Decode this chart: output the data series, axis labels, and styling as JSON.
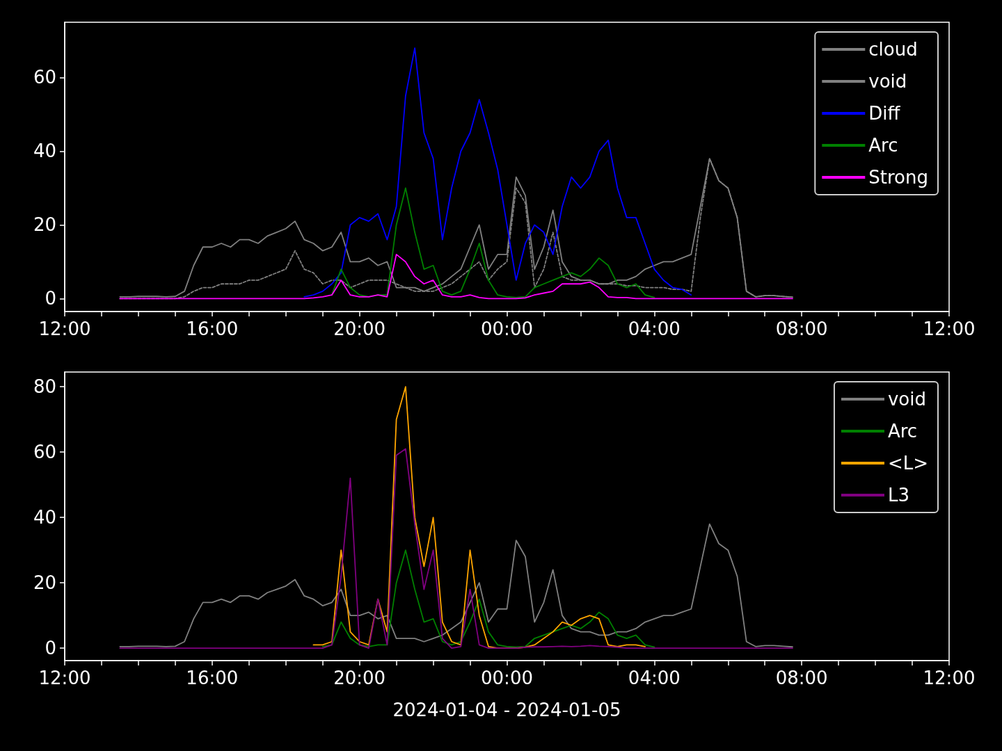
{
  "chart_data": [
    {
      "type": "line",
      "xlim": [
        "2024-01-04T12:00",
        "2024-01-05T12:00"
      ],
      "xticks": [
        {
          "value": "2024-01-04T12:00",
          "label": "12:00"
        },
        {
          "value": "2024-01-04T13:00",
          "label": null
        },
        {
          "value": "2024-01-04T14:00",
          "label": null
        },
        {
          "value": "2024-01-04T15:00",
          "label": null
        },
        {
          "value": "2024-01-04T16:00",
          "label": "16:00"
        },
        {
          "value": "2024-01-04T17:00",
          "label": null
        },
        {
          "value": "2024-01-04T18:00",
          "label": null
        },
        {
          "value": "2024-01-04T19:00",
          "label": null
        },
        {
          "value": "2024-01-04T20:00",
          "label": "20:00"
        },
        {
          "value": "2024-01-04T21:00",
          "label": null
        },
        {
          "value": "2024-01-04T22:00",
          "label": null
        },
        {
          "value": "2024-01-04T23:00",
          "label": null
        },
        {
          "value": "2024-01-05T00:00",
          "label": "00:00"
        },
        {
          "value": "2024-01-05T01:00",
          "label": null
        },
        {
          "value": "2024-01-05T02:00",
          "label": null
        },
        {
          "value": "2024-01-05T03:00",
          "label": null
        },
        {
          "value": "2024-01-05T04:00",
          "label": "04:00"
        },
        {
          "value": "2024-01-05T05:00",
          "label": null
        },
        {
          "value": "2024-01-05T06:00",
          "label": null
        },
        {
          "value": "2024-01-05T07:00",
          "label": null
        },
        {
          "value": "2024-01-05T08:00",
          "label": "08:00"
        },
        {
          "value": "2024-01-05T09:00",
          "label": null
        },
        {
          "value": "2024-01-05T10:00",
          "label": null
        },
        {
          "value": "2024-01-05T11:00",
          "label": null
        },
        {
          "value": "2024-01-05T12:00",
          "label": "12:00"
        }
      ],
      "ylim": [
        -3.5,
        75
      ],
      "yticks": [
        0,
        20,
        40,
        60
      ],
      "grid": false,
      "legend": "top right",
      "marker": "none",
      "x": [
        "2024-01-04T13:30",
        "2024-01-04T13:45",
        "2024-01-04T14:00",
        "2024-01-04T14:15",
        "2024-01-04T14:30",
        "2024-01-04T14:45",
        "2024-01-04T15:00",
        "2024-01-04T15:15",
        "2024-01-04T15:30",
        "2024-01-04T15:45",
        "2024-01-04T16:00",
        "2024-01-04T16:15",
        "2024-01-04T16:30",
        "2024-01-04T16:45",
        "2024-01-04T17:00",
        "2024-01-04T17:15",
        "2024-01-04T17:30",
        "2024-01-04T17:45",
        "2024-01-04T18:00",
        "2024-01-04T18:15",
        "2024-01-04T18:30",
        "2024-01-04T18:45",
        "2024-01-04T19:00",
        "2024-01-04T19:15",
        "2024-01-04T19:30",
        "2024-01-04T19:45",
        "2024-01-04T20:00",
        "2024-01-04T20:15",
        "2024-01-04T20:30",
        "2024-01-04T20:45",
        "2024-01-04T21:00",
        "2024-01-04T21:15",
        "2024-01-04T21:30",
        "2024-01-04T21:45",
        "2024-01-04T22:00",
        "2024-01-04T22:15",
        "2024-01-04T22:30",
        "2024-01-04T22:45",
        "2024-01-04T23:00",
        "2024-01-04T23:15",
        "2024-01-04T23:30",
        "2024-01-04T23:45",
        "2024-01-05T00:00",
        "2024-01-05T00:15",
        "2024-01-05T00:30",
        "2024-01-05T00:45",
        "2024-01-05T01:00",
        "2024-01-05T01:15",
        "2024-01-05T01:30",
        "2024-01-05T01:45",
        "2024-01-05T02:00",
        "2024-01-05T02:15",
        "2024-01-05T02:30",
        "2024-01-05T02:45",
        "2024-01-05T03:00",
        "2024-01-05T03:15",
        "2024-01-05T03:30",
        "2024-01-05T03:45",
        "2024-01-05T04:00",
        "2024-01-05T04:15",
        "2024-01-05T04:30",
        "2024-01-05T04:45",
        "2024-01-05T05:00",
        "2024-01-05T05:15",
        "2024-01-05T05:30",
        "2024-01-05T05:45",
        "2024-01-05T06:00",
        "2024-01-05T06:15",
        "2024-01-05T06:30",
        "2024-01-05T06:45",
        "2024-01-05T07:00",
        "2024-01-05T07:15",
        "2024-01-05T07:30",
        "2024-01-05T07:45"
      ],
      "series": [
        {
          "name": "cloud",
          "color": "#808080",
          "line_style": "dashed",
          "values": [
            0,
            0,
            0,
            0,
            0,
            0,
            0,
            0.5,
            2,
            3,
            3,
            4,
            4,
            4,
            5,
            5,
            6,
            7,
            8,
            13,
            8,
            7,
            4,
            5,
            5,
            3,
            4,
            5,
            5,
            5,
            4,
            3,
            2,
            2,
            2,
            3,
            4,
            6,
            8,
            10,
            5,
            8,
            10,
            30,
            26,
            3,
            8,
            18,
            6,
            5,
            5,
            5,
            4,
            4,
            4,
            3.5,
            3.5,
            3,
            3,
            3,
            2.5,
            2.5,
            2,
            22,
            38,
            32,
            30,
            22,
            2,
            0.5,
            0.8,
            0.8,
            0.6,
            0.4
          ]
        },
        {
          "name": "void",
          "color": "#808080",
          "values": [
            0.5,
            0.5,
            0.6,
            0.6,
            0.6,
            0.5,
            0.6,
            2,
            9,
            14,
            14,
            15,
            14,
            16,
            16,
            15,
            17,
            18,
            19,
            21,
            16,
            15,
            13,
            14,
            18,
            10,
            10,
            11,
            9,
            10,
            3,
            3,
            3,
            2,
            3,
            4,
            6,
            8,
            14,
            20,
            8,
            12,
            12,
            33,
            28,
            8,
            14,
            24,
            10,
            6,
            5,
            5,
            4,
            4,
            5,
            5,
            6,
            8,
            9,
            10,
            10,
            11,
            12,
            25,
            38,
            32,
            30,
            22,
            2,
            0.5,
            0.8,
            0.8,
            0.6,
            0.4
          ]
        },
        {
          "name": "Diff",
          "color": "#0000ff",
          "values": [
            null,
            null,
            null,
            null,
            null,
            null,
            null,
            null,
            null,
            null,
            null,
            null,
            null,
            null,
            null,
            null,
            null,
            null,
            null,
            null,
            0.5,
            1,
            2,
            4,
            7,
            20,
            22,
            21,
            23,
            16,
            25,
            55,
            68,
            45,
            38,
            16,
            30,
            40,
            45,
            54,
            45,
            35,
            20,
            5,
            15,
            20,
            18,
            12,
            25,
            33,
            30,
            33,
            40,
            43,
            30,
            22,
            22,
            15,
            8,
            5,
            3,
            2.5,
            1,
            null,
            null,
            null,
            null,
            null,
            null,
            null,
            null,
            null,
            null,
            null
          ]
        },
        {
          "name": "Arc",
          "color": "#008000",
          "values": [
            null,
            null,
            null,
            null,
            null,
            null,
            null,
            null,
            null,
            null,
            null,
            null,
            null,
            null,
            null,
            null,
            null,
            null,
            null,
            null,
            null,
            null,
            null,
            1,
            8,
            3,
            1,
            0.5,
            1,
            1,
            20,
            30,
            18,
            8,
            9,
            2,
            1,
            2,
            8,
            15,
            5,
            1,
            0.5,
            0.3,
            0.5,
            3,
            4,
            5,
            6,
            7,
            6,
            8,
            11,
            9,
            4,
            3,
            4,
            1,
            0.3,
            null,
            null,
            null,
            null,
            null,
            null,
            null,
            null,
            null,
            null,
            null,
            null,
            null,
            null,
            null
          ]
        },
        {
          "name": "Strong",
          "color": "#ff00ff",
          "values": [
            0,
            0,
            0,
            0,
            0,
            0,
            0,
            0,
            0,
            0,
            0,
            0,
            0,
            0,
            0,
            0,
            0,
            0,
            0,
            0,
            0,
            0.2,
            0.5,
            1,
            5,
            1,
            0.5,
            0.5,
            1,
            0.5,
            12,
            10,
            6,
            4,
            5,
            1,
            0.5,
            0.5,
            1,
            0.3,
            0,
            0,
            0,
            0,
            0.2,
            1,
            1.5,
            2,
            4,
            4,
            4,
            4.5,
            3,
            0.5,
            0.3,
            0.3,
            0,
            0,
            0,
            0,
            0,
            0,
            0,
            0,
            0,
            0,
            0,
            0,
            0,
            0,
            0,
            0,
            0,
            0
          ]
        }
      ]
    },
    {
      "type": "line",
      "xlabel": "2024-01-04 - 2024-01-05",
      "xlim": [
        "2024-01-04T12:00",
        "2024-01-05T12:00"
      ],
      "xticks": [
        {
          "value": "2024-01-04T12:00",
          "label": "12:00"
        },
        {
          "value": "2024-01-04T13:00",
          "label": null
        },
        {
          "value": "2024-01-04T14:00",
          "label": null
        },
        {
          "value": "2024-01-04T15:00",
          "label": null
        },
        {
          "value": "2024-01-04T16:00",
          "label": "16:00"
        },
        {
          "value": "2024-01-04T17:00",
          "label": null
        },
        {
          "value": "2024-01-04T18:00",
          "label": null
        },
        {
          "value": "2024-01-04T19:00",
          "label": null
        },
        {
          "value": "2024-01-04T20:00",
          "label": "20:00"
        },
        {
          "value": "2024-01-04T21:00",
          "label": null
        },
        {
          "value": "2024-01-04T22:00",
          "label": null
        },
        {
          "value": "2024-01-04T23:00",
          "label": null
        },
        {
          "value": "2024-01-05T00:00",
          "label": "00:00"
        },
        {
          "value": "2024-01-05T01:00",
          "label": null
        },
        {
          "value": "2024-01-05T02:00",
          "label": null
        },
        {
          "value": "2024-01-05T03:00",
          "label": null
        },
        {
          "value": "2024-01-05T04:00",
          "label": "04:00"
        },
        {
          "value": "2024-01-05T05:00",
          "label": null
        },
        {
          "value": "2024-01-05T06:00",
          "label": null
        },
        {
          "value": "2024-01-05T07:00",
          "label": null
        },
        {
          "value": "2024-01-05T08:00",
          "label": "08:00"
        },
        {
          "value": "2024-01-05T09:00",
          "label": null
        },
        {
          "value": "2024-01-05T10:00",
          "label": null
        },
        {
          "value": "2024-01-05T11:00",
          "label": null
        },
        {
          "value": "2024-01-05T12:00",
          "label": "12:00"
        }
      ],
      "ylim": [
        -3.8,
        84.5
      ],
      "yticks": [
        0,
        20,
        40,
        60,
        80
      ],
      "grid": false,
      "legend": "top right",
      "marker": "none",
      "x": [
        "2024-01-04T13:30",
        "2024-01-04T13:45",
        "2024-01-04T14:00",
        "2024-01-04T14:15",
        "2024-01-04T14:30",
        "2024-01-04T14:45",
        "2024-01-04T15:00",
        "2024-01-04T15:15",
        "2024-01-04T15:30",
        "2024-01-04T15:45",
        "2024-01-04T16:00",
        "2024-01-04T16:15",
        "2024-01-04T16:30",
        "2024-01-04T16:45",
        "2024-01-04T17:00",
        "2024-01-04T17:15",
        "2024-01-04T17:30",
        "2024-01-04T17:45",
        "2024-01-04T18:00",
        "2024-01-04T18:15",
        "2024-01-04T18:30",
        "2024-01-04T18:45",
        "2024-01-04T19:00",
        "2024-01-04T19:15",
        "2024-01-04T19:30",
        "2024-01-04T19:45",
        "2024-01-04T20:00",
        "2024-01-04T20:15",
        "2024-01-04T20:30",
        "2024-01-04T20:45",
        "2024-01-04T21:00",
        "2024-01-04T21:15",
        "2024-01-04T21:30",
        "2024-01-04T21:45",
        "2024-01-04T22:00",
        "2024-01-04T22:15",
        "2024-01-04T22:30",
        "2024-01-04T22:45",
        "2024-01-04T23:00",
        "2024-01-04T23:15",
        "2024-01-04T23:30",
        "2024-01-04T23:45",
        "2024-01-05T00:00",
        "2024-01-05T00:15",
        "2024-01-05T00:30",
        "2024-01-05T00:45",
        "2024-01-05T01:00",
        "2024-01-05T01:15",
        "2024-01-05T01:30",
        "2024-01-05T01:45",
        "2024-01-05T02:00",
        "2024-01-05T02:15",
        "2024-01-05T02:30",
        "2024-01-05T02:45",
        "2024-01-05T03:00",
        "2024-01-05T03:15",
        "2024-01-05T03:30",
        "2024-01-05T03:45",
        "2024-01-05T04:00",
        "2024-01-05T04:15",
        "2024-01-05T04:30",
        "2024-01-05T04:45",
        "2024-01-05T05:00",
        "2024-01-05T05:15",
        "2024-01-05T05:30",
        "2024-01-05T05:45",
        "2024-01-05T06:00",
        "2024-01-05T06:15",
        "2024-01-05T06:30",
        "2024-01-05T06:45",
        "2024-01-05T07:00",
        "2024-01-05T07:15",
        "2024-01-05T07:30",
        "2024-01-05T07:45"
      ],
      "series": [
        {
          "name": "void",
          "color": "#808080",
          "values": [
            0.5,
            0.5,
            0.6,
            0.6,
            0.6,
            0.5,
            0.6,
            2,
            9,
            14,
            14,
            15,
            14,
            16,
            16,
            15,
            17,
            18,
            19,
            21,
            16,
            15,
            13,
            14,
            18,
            10,
            10,
            11,
            9,
            10,
            3,
            3,
            3,
            2,
            3,
            4,
            6,
            8,
            14,
            20,
            8,
            12,
            12,
            33,
            28,
            8,
            14,
            24,
            10,
            6,
            5,
            5,
            4,
            4,
            5,
            5,
            6,
            8,
            9,
            10,
            10,
            11,
            12,
            25,
            38,
            32,
            30,
            22,
            2,
            0.5,
            0.8,
            0.8,
            0.6,
            0.4
          ]
        },
        {
          "name": "Arc",
          "color": "#008000",
          "values": [
            null,
            null,
            null,
            null,
            null,
            null,
            null,
            null,
            null,
            null,
            null,
            null,
            null,
            null,
            null,
            null,
            null,
            null,
            null,
            null,
            null,
            null,
            0.5,
            1,
            8,
            3,
            1,
            0.5,
            1,
            1,
            20,
            30,
            18,
            8,
            9,
            2,
            1,
            2,
            8,
            15,
            5,
            1,
            0.5,
            0.3,
            0.5,
            3,
            4,
            5,
            6,
            7,
            6,
            8,
            11,
            9,
            4,
            3,
            4,
            1,
            0.3,
            null,
            null,
            null,
            null,
            null,
            null,
            null,
            null,
            null,
            null,
            null,
            null,
            null,
            null,
            null
          ]
        },
        {
          "name": "<L>",
          "color": "#ffa500",
          "values": [
            null,
            null,
            null,
            null,
            null,
            null,
            null,
            null,
            null,
            null,
            null,
            null,
            null,
            null,
            null,
            null,
            null,
            null,
            null,
            null,
            null,
            1,
            1,
            2,
            30,
            5,
            2,
            1,
            15,
            5,
            70,
            80,
            40,
            25,
            40,
            8,
            2,
            1,
            30,
            10,
            0.5,
            0,
            0,
            0,
            0.3,
            1,
            3,
            5,
            8,
            7,
            9,
            10,
            9,
            1,
            0.5,
            1,
            1,
            0.5,
            null,
            null,
            null,
            null,
            null,
            null,
            null,
            null,
            null,
            null,
            null,
            null,
            null,
            null,
            null,
            null
          ]
        },
        {
          "name": "L3",
          "color": "#800080",
          "values": [
            0,
            0,
            0,
            0,
            0,
            0,
            0,
            0,
            0,
            0,
            0,
            0,
            0,
            0,
            0,
            0,
            0,
            0,
            0,
            0,
            0,
            0,
            0,
            1,
            22,
            52,
            1,
            0,
            15,
            1,
            59,
            61,
            38,
            18,
            30,
            3,
            0,
            0.5,
            18,
            1,
            0,
            0,
            0,
            0,
            0.3,
            0.4,
            0.4,
            0.5,
            0.6,
            0.5,
            0.6,
            0.8,
            0.6,
            0.5,
            0.3,
            0,
            0,
            0,
            0,
            0,
            0,
            0,
            0,
            0,
            0,
            0,
            0,
            0,
            0,
            0,
            0,
            0,
            0,
            0
          ]
        }
      ]
    }
  ]
}
